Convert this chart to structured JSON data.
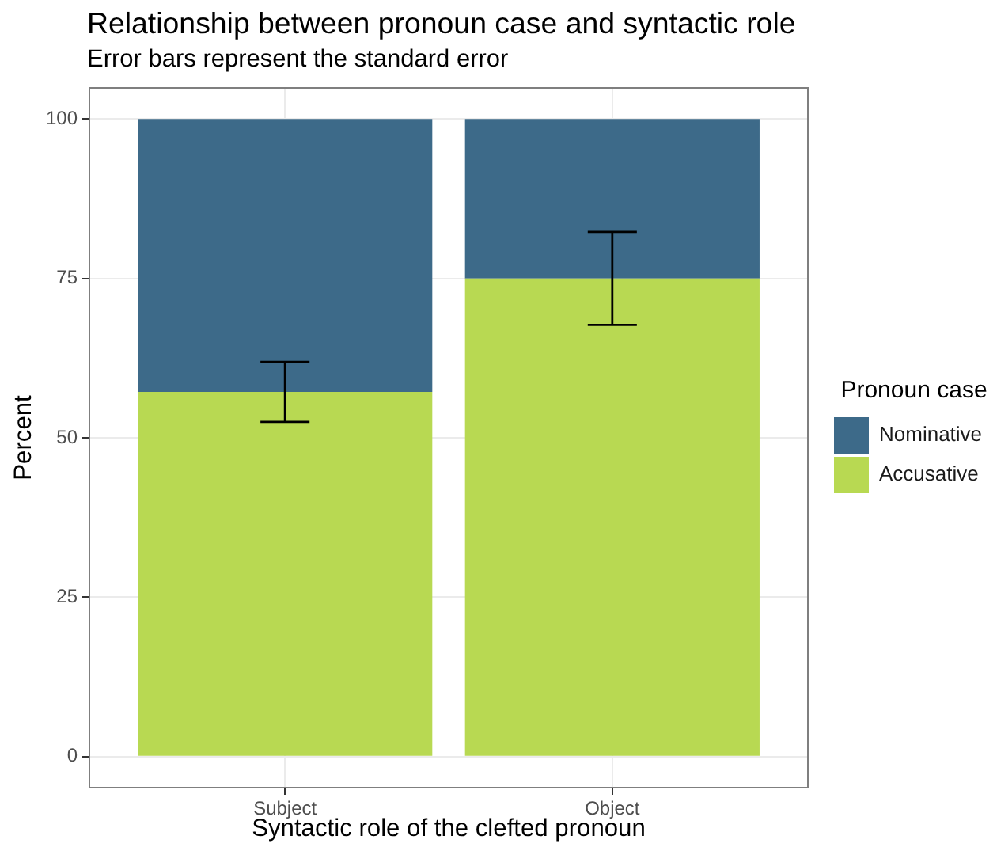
{
  "chart_data": {
    "type": "bar",
    "title": "Relationship between pronoun case and syntactic role",
    "subtitle": "Error bars represent the standard error",
    "xlabel": "Syntactic role of the clefted pronoun",
    "ylabel": "Percent",
    "legend_title": "Pronoun case",
    "categories": [
      "Subject",
      "Object"
    ],
    "stacked": true,
    "series": [
      {
        "name": "Accusative",
        "color": "#b8d952",
        "values": [
          57.2,
          75
        ],
        "errors": [
          [
            52.5,
            61.9
          ],
          [
            67.7,
            82.3
          ]
        ]
      },
      {
        "name": "Nominative",
        "color": "#3d6a89",
        "values": [
          42.8,
          25
        ]
      }
    ],
    "ylim": [
      -5,
      105
    ],
    "yticks": [
      0,
      25,
      50,
      75,
      100
    ],
    "grid": true,
    "legend": "right"
  }
}
